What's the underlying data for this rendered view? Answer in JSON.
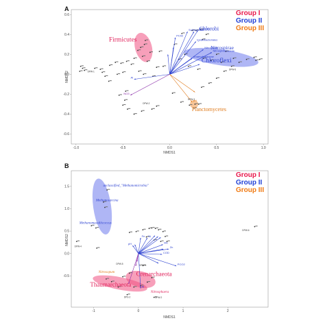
{
  "legend": [
    {
      "label": "Group I",
      "color": "#e8174b"
    },
    {
      "label": "Group II",
      "color": "#1f3fd6"
    },
    {
      "label": "Group III",
      "color": "#f07a12"
    }
  ],
  "chart_data": [
    {
      "type": "scatter",
      "panel": "A",
      "xlabel": "NMDS1",
      "ylabel": "NMDS2",
      "xlim": [
        -1.05,
        1.05
      ],
      "ylim": [
        -0.7,
        0.65
      ],
      "xticks": [
        "-1.0",
        "-0.5",
        "0.0",
        "0.5",
        "1.0"
      ],
      "yticks": [
        "-0.6",
        "-0.4",
        "-0.2",
        "0.0",
        "0.2",
        "0.4",
        "0.6"
      ],
      "ellipses": [
        {
          "group": "Group I",
          "label": "Firmicutes",
          "cx": -0.28,
          "cy": 0.27,
          "rx": 0.09,
          "ry": 0.15,
          "rot": 15
        },
        {
          "group": "Group II",
          "label": "Chloroflexi",
          "cx": 0.55,
          "cy": 0.17,
          "rx": 0.4,
          "ry": 0.08,
          "rot": -8
        },
        {
          "group": "Group III",
          "label": "Planctomycetes",
          "cx": 0.26,
          "cy": -0.3,
          "rx": 0.045,
          "ry": 0.04,
          "rot": 0
        }
      ],
      "vectors": [
        {
          "label": "Sulfolobales",
          "x": 0.19,
          "y": 0.43,
          "color": "blue"
        },
        {
          "label": "Chlorobi",
          "x": 0.3,
          "y": 0.44,
          "color": "blue"
        },
        {
          "label": "",
          "x": 0.26,
          "y": 0.43,
          "color": "blue"
        },
        {
          "label": "Ignavibacteriales",
          "x": 0.28,
          "y": 0.33,
          "color": "blue"
        },
        {
          "label": "Nitrospirae",
          "x": 0.36,
          "y": 0.25,
          "color": "blue"
        },
        {
          "label": "Nitrosphaeraceae",
          "x": 0.45,
          "y": 0.22,
          "color": "blue"
        },
        {
          "label": "Anaerolineaceae",
          "x": 0.24,
          "y": 0.16,
          "color": "blue"
        },
        {
          "label": "",
          "x": 0.32,
          "y": 0.1,
          "color": "blue"
        },
        {
          "label": "PC02",
          "x": 0.06,
          "y": 0.37,
          "color": "blue"
        },
        {
          "label": "",
          "x": 0.04,
          "y": 0.27,
          "color": "blue"
        },
        {
          "label": "",
          "x": -0.02,
          "y": 0.2,
          "color": "blue"
        },
        {
          "label": "Al",
          "x": -0.38,
          "y": -0.05,
          "color": "blue"
        },
        {
          "label": "NO3",
          "x": -0.42,
          "y": -0.21,
          "color": "purple"
        },
        {
          "label": "",
          "x": 0.27,
          "y": -0.18,
          "color": "orange"
        },
        {
          "label": "pH",
          "x": 0.24,
          "y": -0.28,
          "color": "orange"
        }
      ],
      "annotations": [
        {
          "label": "Firmicutes",
          "x": -0.5,
          "y": 0.33,
          "color": "red",
          "size": 9.5
        },
        {
          "label": "Chlorobi",
          "x": 0.42,
          "y": 0.44,
          "color": "blue",
          "size": 8
        },
        {
          "label": "Nitrospirae",
          "x": 0.56,
          "y": 0.25,
          "color": "blue",
          "size": 7.5
        },
        {
          "label": "Chloroflexi",
          "x": 0.5,
          "y": 0.12,
          "color": "blue",
          "size": 9.5
        },
        {
          "label": "Planctomycetes",
          "x": 0.42,
          "y": -0.37,
          "color": "orange",
          "size": 8
        },
        {
          "label": "DPW-1",
          "x": -0.84,
          "y": 0.02,
          "color": "red",
          "size": 4
        },
        {
          "label": "DPW-2",
          "x": -0.25,
          "y": -0.3,
          "color": "red",
          "size": 4
        },
        {
          "label": "DPW-6",
          "x": 0.67,
          "y": 0.04,
          "color": "blue",
          "size": 4
        },
        {
          "label": "DPW-3",
          "x": 0.23,
          "y": -0.26,
          "color": "orange",
          "size": 4
        }
      ],
      "points": [
        [
          -0.93,
          0.06
        ],
        [
          -0.96,
          0.03
        ],
        [
          -0.91,
          0.04
        ],
        [
          -0.95,
          0.08
        ],
        [
          -0.8,
          0.06
        ],
        [
          -0.74,
          0.05
        ],
        [
          -0.72,
          0.02
        ],
        [
          -0.69,
          -0.02
        ],
        [
          -0.65,
          -0.07
        ],
        [
          -0.58,
          0.12
        ],
        [
          -0.64,
          0.09
        ],
        [
          -0.52,
          0.11
        ],
        [
          -0.56,
          0.0
        ],
        [
          -0.5,
          0.02
        ],
        [
          -0.46,
          0.13
        ],
        [
          -0.41,
          0.1
        ],
        [
          -0.38,
          0.16
        ],
        [
          -0.33,
          0.03
        ],
        [
          -0.28,
          0.0
        ],
        [
          -0.29,
          0.18
        ],
        [
          -0.24,
          0.13
        ],
        [
          -0.21,
          0.22
        ],
        [
          -0.27,
          0.3
        ],
        [
          -0.31,
          0.27
        ],
        [
          -0.34,
          0.24
        ],
        [
          -0.26,
          0.34
        ],
        [
          -0.11,
          0.23
        ],
        [
          -0.14,
          0.07
        ],
        [
          -0.07,
          0.08
        ],
        [
          -0.18,
          -0.02
        ],
        [
          -0.47,
          -0.17
        ],
        [
          -0.54,
          -0.21
        ],
        [
          -0.48,
          -0.26
        ],
        [
          -0.5,
          -0.31
        ],
        [
          -0.45,
          -0.35
        ],
        [
          -0.38,
          -0.4
        ],
        [
          -0.3,
          -0.37
        ],
        [
          -0.19,
          -0.35
        ],
        [
          -0.14,
          -0.32
        ],
        [
          0.03,
          -0.19
        ],
        [
          0.12,
          -0.28
        ],
        [
          0.21,
          -0.31
        ],
        [
          0.27,
          -0.3
        ],
        [
          0.31,
          -0.3
        ],
        [
          0.26,
          -0.34
        ],
        [
          0.34,
          -0.13
        ],
        [
          0.42,
          -0.09
        ],
        [
          0.5,
          -0.04
        ],
        [
          0.58,
          0.03
        ],
        [
          0.66,
          0.08
        ],
        [
          0.74,
          0.12
        ],
        [
          0.82,
          0.15
        ],
        [
          0.9,
          0.17
        ],
        [
          0.92,
          0.14
        ],
        [
          0.96,
          0.15
        ],
        [
          0.28,
          0.44
        ],
        [
          0.33,
          0.45
        ],
        [
          0.24,
          0.44
        ],
        [
          0.39,
          0.4
        ],
        [
          0.35,
          0.35
        ],
        [
          0.13,
          0.41
        ],
        [
          0.16,
          0.2
        ],
        [
          0.36,
          0.16
        ],
        [
          0.44,
          0.14
        ],
        [
          0.5,
          0.2
        ],
        [
          0.6,
          0.23
        ],
        [
          0.68,
          0.16
        ],
        [
          0.55,
          0.12
        ],
        [
          0.3,
          0.05
        ],
        [
          0.2,
          0.08
        ],
        [
          0.1,
          0.15
        ],
        [
          0.05,
          0.3
        ]
      ]
    },
    {
      "type": "scatter",
      "panel": "B",
      "xlabel": "NMDS1",
      "ylabel": "NMDS2",
      "xlim": [
        -1.5,
        2.9
      ],
      "ylim": [
        -1.2,
        1.85
      ],
      "xticks": [
        "-1",
        "0",
        "1",
        "2"
      ],
      "yticks": [
        "-0.5",
        "0.0",
        "0.5",
        "1.0",
        "1.5"
      ],
      "ellipses": [
        {
          "group": "Group II",
          "label": "Methanomicrobia",
          "cx": -0.81,
          "cy": 1.05,
          "rx": 0.2,
          "ry": 0.63,
          "rot": 8
        },
        {
          "group": "Group I",
          "label": "Thaumarchaeota",
          "cx": -0.41,
          "cy": -0.67,
          "rx": 0.62,
          "ry": 0.14,
          "rot": -11
        },
        {
          "group": "Group I",
          "label": "Crenarchaeota",
          "cx": 0.05,
          "cy": -0.58,
          "rx": 0.34,
          "ry": 0.18,
          "rot": -14
        }
      ],
      "vectors": [
        {
          "label": "pH",
          "x": -0.13,
          "y": 0.18,
          "color": "blue"
        },
        {
          "label": "",
          "x": -0.08,
          "y": 0.2,
          "color": "blue"
        },
        {
          "label": "Fe",
          "x": 0.05,
          "y": 0.35,
          "color": "blue"
        },
        {
          "label": "Ni",
          "x": 0.2,
          "y": 0.35,
          "color": "blue"
        },
        {
          "label": "",
          "x": 0.37,
          "y": 0.4,
          "color": "blue"
        },
        {
          "label": "",
          "x": 0.44,
          "y": 0.38,
          "color": "blue"
        },
        {
          "label": "",
          "x": 0.5,
          "y": 0.36,
          "color": "blue"
        },
        {
          "label": "Mn",
          "x": 0.55,
          "y": 0.2,
          "color": "blue"
        },
        {
          "label": "",
          "x": 0.56,
          "y": 0.1,
          "color": "blue"
        },
        {
          "label": "Zn",
          "x": 0.68,
          "y": 0.1,
          "color": "blue"
        },
        {
          "label": "COD",
          "x": 0.53,
          "y": -0.02,
          "color": "blue"
        },
        {
          "label": "PCO2",
          "x": 0.85,
          "y": -0.28,
          "color": "blue"
        },
        {
          "label": "",
          "x": 0.45,
          "y": -0.22,
          "color": "blue"
        },
        {
          "label": "",
          "x": -0.03,
          "y": -0.18,
          "color": "purple"
        },
        {
          "label": "",
          "x": -0.06,
          "y": -0.28,
          "color": "purple"
        },
        {
          "label": "Al",
          "x": 0.05,
          "y": -0.78,
          "color": "blue"
        },
        {
          "label": "",
          "x": -0.22,
          "y": -0.68,
          "color": "purple"
        }
      ],
      "annotations": [
        {
          "label": "unclassified_\"Methanomicrobia\"",
          "x": -0.28,
          "y": 1.5,
          "color": "blue",
          "size": 5
        },
        {
          "label": "Methanosarcina",
          "x": -0.7,
          "y": 1.17,
          "color": "blue",
          "size": 5
        },
        {
          "label": "Methanomassiliicoccus",
          "x": -0.96,
          "y": 0.66,
          "color": "blue",
          "size": 5
        },
        {
          "label": "DPW-4",
          "x": -1.35,
          "y": 0.14,
          "color": "orange",
          "size": 4
        },
        {
          "label": "DPW-5",
          "x": -0.42,
          "y": -0.25,
          "color": "orange",
          "size": 4
        },
        {
          "label": "DPW-1",
          "x": 0.1,
          "y": -0.28,
          "color": "red",
          "size": 4
        },
        {
          "label": "DPW-2",
          "x": 0.45,
          "y": -1.0,
          "color": "red",
          "size": 4
        },
        {
          "label": "DPW-6",
          "x": 2.4,
          "y": 0.5,
          "color": "blue",
          "size": 4
        },
        {
          "label": "DPS-2",
          "x": -0.25,
          "y": -0.99,
          "color": "red",
          "size": 4
        },
        {
          "label": "Nitrosopum",
          "x": -0.71,
          "y": -0.43,
          "color": "orange",
          "size": 5
        },
        {
          "label": "Thaumarchaeota",
          "x": -0.62,
          "y": -0.74,
          "color": "red",
          "size": 9
        },
        {
          "label": "Crenarchaeota",
          "x": 0.35,
          "y": -0.5,
          "color": "red",
          "size": 9
        },
        {
          "label": "Nitrosphaera",
          "x": 0.48,
          "y": -0.88,
          "color": "red",
          "size": 5
        }
      ],
      "points": [
        [
          -0.7,
          1.42
        ],
        [
          -0.78,
          1.15
        ],
        [
          -0.75,
          1.03
        ],
        [
          -1.05,
          0.62
        ],
        [
          -0.95,
          0.57
        ],
        [
          -1.38,
          0.27
        ],
        [
          -0.93,
          0.12
        ],
        [
          -0.2,
          0.47
        ],
        [
          -0.05,
          0.49
        ],
        [
          0.1,
          0.53
        ],
        [
          0.24,
          0.56
        ],
        [
          0.3,
          0.57
        ],
        [
          0.38,
          0.56
        ],
        [
          0.45,
          0.53
        ],
        [
          0.55,
          0.49
        ],
        [
          0.6,
          0.38
        ],
        [
          0.64,
          0.27
        ],
        [
          0.5,
          0.27
        ],
        [
          0.35,
          0.3
        ],
        [
          0.18,
          0.37
        ],
        [
          0.1,
          -0.27
        ],
        [
          -0.2,
          -0.44
        ],
        [
          -0.35,
          -0.52
        ],
        [
          -0.72,
          -0.57
        ],
        [
          -0.6,
          -0.63
        ],
        [
          -0.45,
          -0.75
        ],
        [
          -0.1,
          -0.75
        ],
        [
          0.05,
          -0.72
        ],
        [
          0.2,
          -0.64
        ],
        [
          0.3,
          -0.54
        ],
        [
          -0.25,
          -0.92
        ],
        [
          0.35,
          -0.98
        ],
        [
          2.6,
          0.6
        ]
      ]
    }
  ]
}
